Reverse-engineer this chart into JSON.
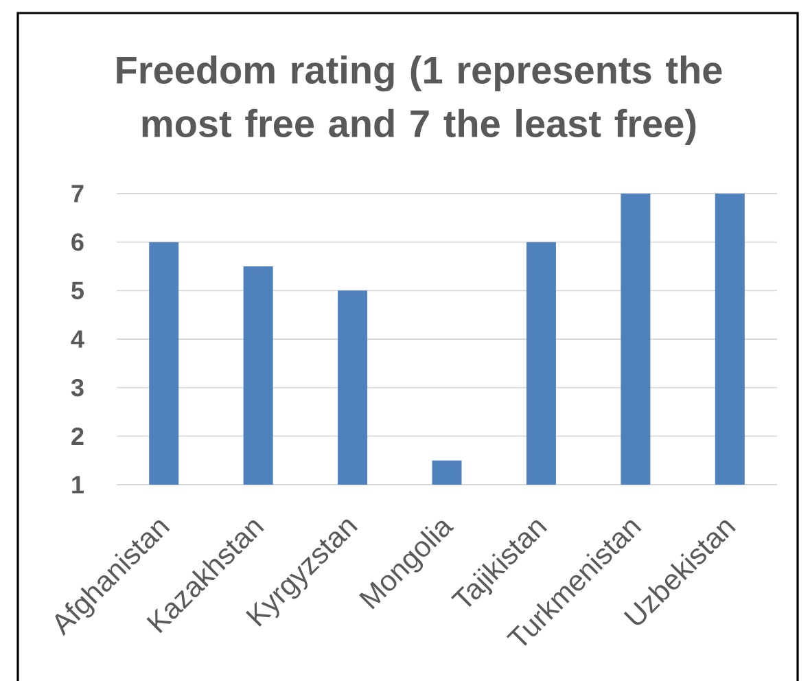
{
  "chart_data": {
    "type": "bar",
    "title": "Freedom rating (1 represents the most free and 7 the least free)",
    "categories": [
      "Afghanistan",
      "Kazakhstan",
      "Kyrgyzstan",
      "Mongolia",
      "Tajikistan",
      "Turkmenistan",
      "Uzbekistan"
    ],
    "values": [
      6,
      5.5,
      5,
      1.5,
      6,
      7,
      7
    ],
    "color": "#4f81bd",
    "ylim": [
      1,
      7
    ],
    "yticks": [
      1,
      2,
      3,
      4,
      5,
      6,
      7
    ],
    "grid": "y"
  }
}
